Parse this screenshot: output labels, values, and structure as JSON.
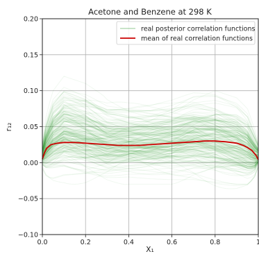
{
  "chart_data": {
    "type": "line",
    "title": "Acetone and Benzene at 298 K",
    "xlabel": "X₁",
    "ylabel": "r₁₂",
    "xlim": [
      0.0,
      1.0
    ],
    "ylim": [
      -0.1,
      0.2
    ],
    "x_ticks": [
      0.0,
      0.2,
      0.4,
      0.6,
      0.8,
      1.0
    ],
    "x_tick_labels": [
      "0.0",
      "0.2",
      "0.4",
      "0.6",
      "0.8",
      "1"
    ],
    "y_ticks": [
      -0.1,
      -0.05,
      0.0,
      0.05,
      0.1,
      0.15,
      0.2
    ],
    "y_tick_labels": [
      "−0.10",
      "−0.05",
      "0.00",
      "0.05",
      "0.10",
      "0.15",
      "0.20"
    ],
    "grid": true,
    "legend_position": "top-right",
    "series": [
      {
        "name": "real posterior correlation functions",
        "color": "#008000",
        "style": "many faint sample curves",
        "band_x": [
          0.0,
          0.02,
          0.05,
          0.1,
          0.2,
          0.3,
          0.4,
          0.5,
          0.6,
          0.7,
          0.8,
          0.9,
          0.95,
          0.98,
          1.0
        ],
        "band_upper": [
          0.03,
          0.07,
          0.1,
          0.12,
          0.11,
          0.09,
          0.085,
          0.085,
          0.09,
          0.1,
          0.1,
          0.09,
          0.075,
          0.05,
          0.03
        ],
        "band_lower": [
          -0.01,
          -0.025,
          -0.03,
          -0.03,
          -0.035,
          -0.035,
          -0.03,
          -0.03,
          -0.03,
          -0.03,
          -0.035,
          -0.04,
          -0.04,
          -0.03,
          -0.01
        ]
      },
      {
        "name": "mean of real correlation functions",
        "color": "#cc0000",
        "x": [
          0.0,
          0.01,
          0.02,
          0.04,
          0.07,
          0.1,
          0.15,
          0.2,
          0.25,
          0.3,
          0.35,
          0.4,
          0.45,
          0.5,
          0.55,
          0.6,
          0.65,
          0.7,
          0.75,
          0.8,
          0.85,
          0.9,
          0.93,
          0.95,
          0.97,
          0.99,
          1.0
        ],
        "y": [
          0.005,
          0.014,
          0.02,
          0.025,
          0.027,
          0.028,
          0.028,
          0.027,
          0.026,
          0.025,
          0.024,
          0.024,
          0.024,
          0.025,
          0.026,
          0.027,
          0.028,
          0.029,
          0.03,
          0.03,
          0.029,
          0.027,
          0.024,
          0.021,
          0.017,
          0.01,
          0.004
        ]
      }
    ]
  }
}
